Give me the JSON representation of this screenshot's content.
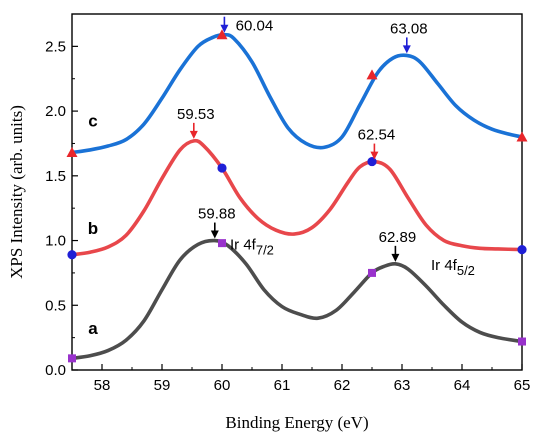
{
  "chart_data": {
    "type": "line",
    "xlabel": "Binding Energy (eV)",
    "ylabel": "XPS Intensity  (arb. units)",
    "xlim": [
      57.5,
      65
    ],
    "ylim": [
      0,
      2.75
    ],
    "xticks": [
      58,
      59,
      60,
      61,
      62,
      63,
      64,
      65
    ],
    "yticks": [
      0.0,
      0.5,
      1.0,
      1.5,
      2.0,
      2.5
    ],
    "ytick_labels": [
      "0.0",
      "0.5",
      "1.0",
      "1.5",
      "2.0",
      "2.5"
    ],
    "grid": false,
    "series": [
      {
        "label": "a",
        "color": "#4d4d4d",
        "marker": "square",
        "marker_color": "#9932cc",
        "x": [
          57.5,
          57.8,
          58.1,
          58.4,
          58.7,
          59.0,
          59.3,
          59.6,
          59.88,
          60.1,
          60.4,
          60.7,
          61.0,
          61.3,
          61.6,
          61.9,
          62.2,
          62.5,
          62.7,
          62.89,
          63.1,
          63.4,
          63.7,
          64.0,
          64.3,
          64.6,
          65.0
        ],
        "y": [
          0.09,
          0.11,
          0.15,
          0.23,
          0.38,
          0.62,
          0.85,
          0.97,
          1.0,
          0.96,
          0.82,
          0.62,
          0.49,
          0.43,
          0.4,
          0.46,
          0.6,
          0.75,
          0.8,
          0.82,
          0.78,
          0.65,
          0.5,
          0.37,
          0.29,
          0.25,
          0.22
        ],
        "markers_x": [
          57.5,
          60.0,
          62.5,
          65.0
        ],
        "markers_y": [
          0.09,
          0.98,
          0.75,
          0.22
        ]
      },
      {
        "label": "b",
        "color": "#e8474b",
        "marker": "circle",
        "marker_color": "#1f1fd6",
        "x": [
          57.5,
          57.8,
          58.1,
          58.4,
          58.7,
          59.0,
          59.3,
          59.53,
          59.7,
          60.0,
          60.3,
          60.6,
          60.9,
          61.2,
          61.5,
          61.8,
          62.1,
          62.3,
          62.54,
          62.8,
          63.1,
          63.4,
          63.7,
          64.0,
          64.3,
          64.6,
          65.0
        ],
        "y": [
          0.89,
          0.91,
          0.95,
          1.04,
          1.23,
          1.48,
          1.7,
          1.77,
          1.73,
          1.56,
          1.33,
          1.17,
          1.08,
          1.05,
          1.1,
          1.24,
          1.45,
          1.57,
          1.61,
          1.55,
          1.33,
          1.12,
          1.0,
          0.96,
          0.94,
          0.935,
          0.93
        ],
        "markers_x": [
          57.5,
          60.0,
          62.5,
          65.0
        ],
        "markers_y": [
          0.89,
          1.56,
          1.61,
          0.93
        ]
      },
      {
        "label": "c",
        "color": "#1a72d6",
        "marker": "triangle",
        "marker_color": "#e8262b",
        "x": [
          57.5,
          57.8,
          58.1,
          58.4,
          58.7,
          59.0,
          59.3,
          59.6,
          59.85,
          60.04,
          60.2,
          60.5,
          60.8,
          61.1,
          61.4,
          61.7,
          62.0,
          62.3,
          62.6,
          62.85,
          63.08,
          63.3,
          63.6,
          63.9,
          64.2,
          64.5,
          64.8,
          65.0
        ],
        "y": [
          1.68,
          1.7,
          1.73,
          1.78,
          1.9,
          2.1,
          2.32,
          2.5,
          2.57,
          2.59,
          2.56,
          2.38,
          2.11,
          1.87,
          1.75,
          1.72,
          1.8,
          2.05,
          2.3,
          2.41,
          2.43,
          2.38,
          2.21,
          2.04,
          1.93,
          1.86,
          1.82,
          1.8
        ],
        "markers_x": [
          57.5,
          60.0,
          62.5,
          65.0
        ],
        "markers_y": [
          1.68,
          2.59,
          2.28,
          1.8
        ]
      }
    ],
    "annotations": [
      {
        "text": "60.04",
        "x": 60.04,
        "y": 2.59,
        "arrow_color": "#1f1fd6"
      },
      {
        "text": "63.08",
        "x": 63.08,
        "y": 2.43,
        "arrow_color": "#1f1fd6"
      },
      {
        "text": "59.53",
        "x": 59.53,
        "y": 1.77,
        "arrow_color": "#e8262b"
      },
      {
        "text": "62.54",
        "x": 62.54,
        "y": 1.61,
        "arrow_color": "#e8262b"
      },
      {
        "text": "59.88",
        "x": 59.88,
        "y": 1.0,
        "arrow_color": "#000000"
      },
      {
        "text": "62.89",
        "x": 62.89,
        "y": 0.82,
        "arrow_color": "#000000"
      }
    ],
    "peak_labels": [
      {
        "main": "Ir 4f",
        "sub": "7/2",
        "x": 60.0,
        "y": 0.97
      },
      {
        "main": "Ir 4f",
        "sub": "5/2",
        "x": 63.35,
        "y": 0.81
      }
    ],
    "curve_labels": [
      {
        "text": "a",
        "x": 57.85,
        "y": 0.28
      },
      {
        "text": "b",
        "x": 57.85,
        "y": 1.05
      },
      {
        "text": "c",
        "x": 57.85,
        "y": 1.88
      }
    ]
  }
}
